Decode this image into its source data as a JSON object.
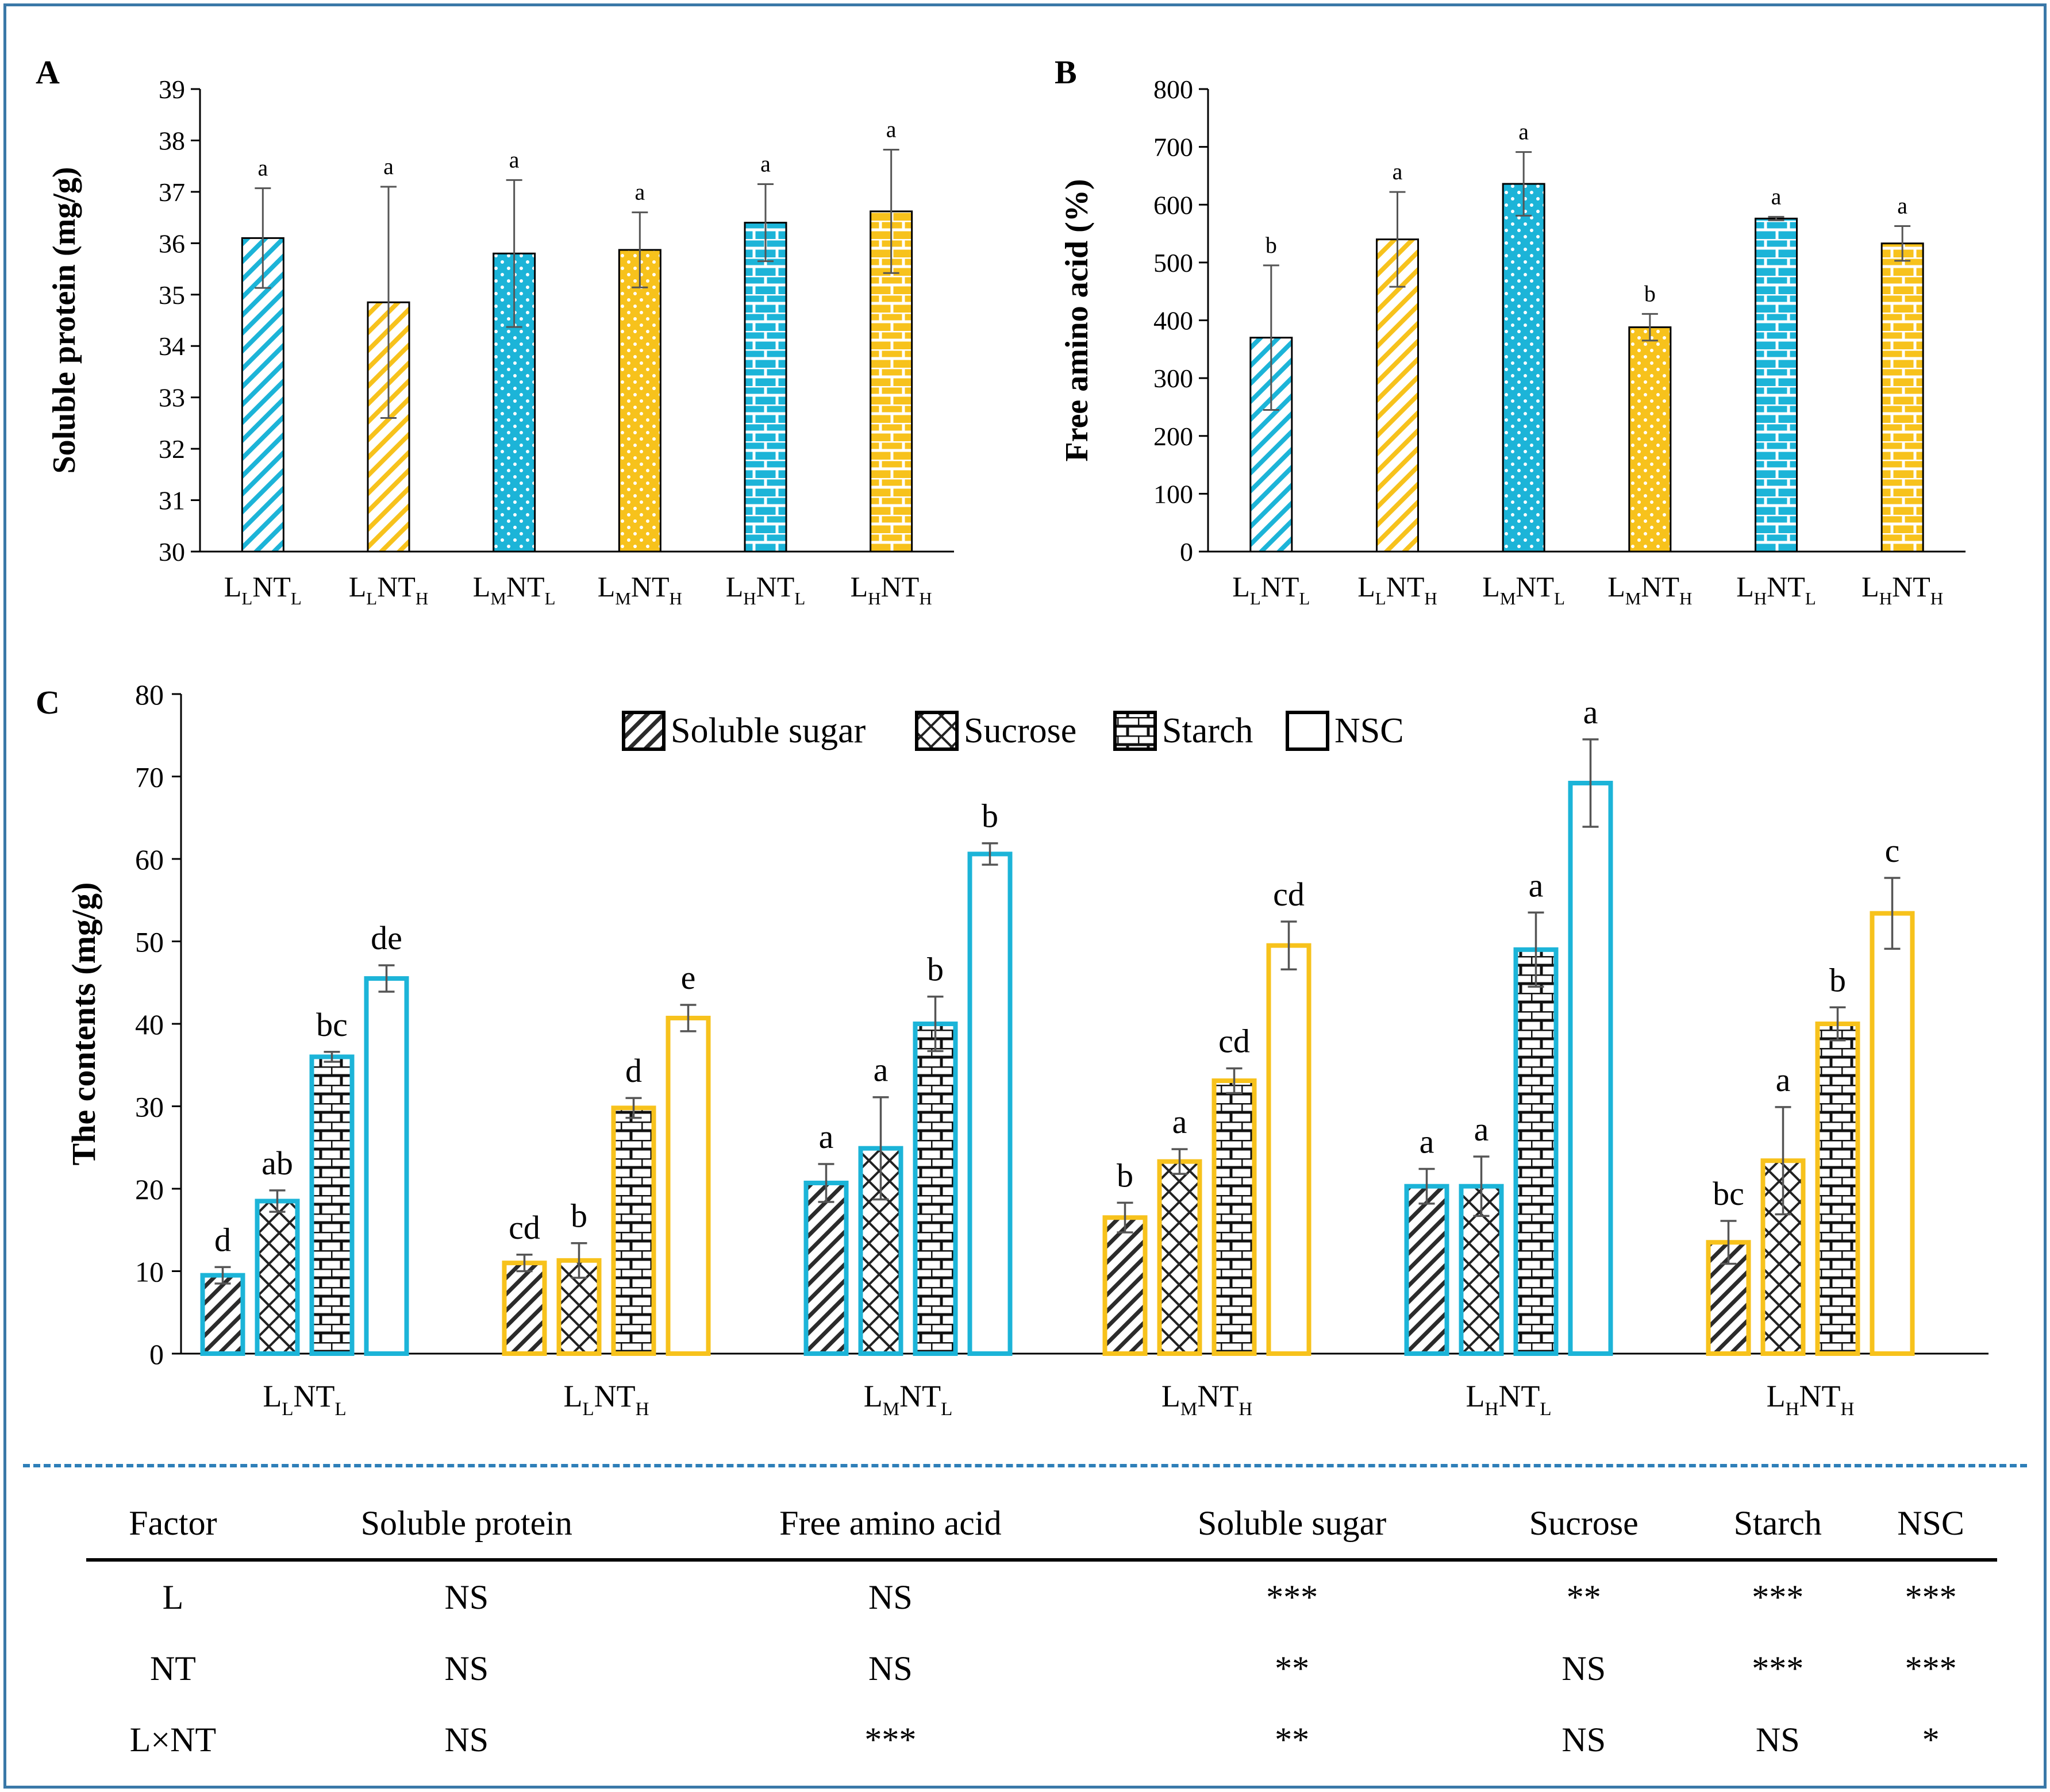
{
  "colors": {
    "blue": "#1cb4d8",
    "yellow": "#f7c21c",
    "frame": "#3a78a8",
    "divider": "#2e7fb8",
    "error_bar": "#555555"
  },
  "chart_data": [
    {
      "panel": "A",
      "type": "bar",
      "ylabel": "Soluble protein (mg/g)",
      "ylim": [
        30,
        39
      ],
      "yticks": [
        "30",
        "31",
        "32",
        "33",
        "34",
        "35",
        "36",
        "37",
        "38",
        "39"
      ],
      "categories": [
        {
          "base": "L",
          "sub1": "L",
          "mid": "NT",
          "sub2": "L"
        },
        {
          "base": "L",
          "sub1": "L",
          "mid": "NT",
          "sub2": "H"
        },
        {
          "base": "L",
          "sub1": "M",
          "mid": "NT",
          "sub2": "L"
        },
        {
          "base": "L",
          "sub1": "M",
          "mid": "NT",
          "sub2": "H"
        },
        {
          "base": "L",
          "sub1": "H",
          "mid": "NT",
          "sub2": "L"
        },
        {
          "base": "L",
          "sub1": "H",
          "mid": "NT",
          "sub2": "H"
        }
      ],
      "values": [
        36.1,
        34.85,
        35.8,
        35.87,
        36.4,
        36.62
      ],
      "errors": [
        0.97,
        2.25,
        1.43,
        0.73,
        0.75,
        1.2
      ],
      "letters": [
        "a",
        "a",
        "a",
        "a",
        "a",
        "a"
      ],
      "bar_colors": [
        "blue",
        "yellow",
        "blue",
        "yellow",
        "blue",
        "yellow"
      ],
      "patterns": [
        "diag",
        "diag",
        "dots",
        "dots",
        "brick",
        "brick"
      ]
    },
    {
      "panel": "B",
      "type": "bar",
      "ylabel": "Free amino acid (%)",
      "ylim": [
        0,
        800
      ],
      "yticks": [
        "0",
        "100",
        "200",
        "300",
        "400",
        "500",
        "600",
        "700",
        "800"
      ],
      "categories": [
        {
          "base": "L",
          "sub1": "L",
          "mid": "NT",
          "sub2": "L"
        },
        {
          "base": "L",
          "sub1": "L",
          "mid": "NT",
          "sub2": "H"
        },
        {
          "base": "L",
          "sub1": "M",
          "mid": "NT",
          "sub2": "L"
        },
        {
          "base": "L",
          "sub1": "M",
          "mid": "NT",
          "sub2": "H"
        },
        {
          "base": "L",
          "sub1": "H",
          "mid": "NT",
          "sub2": "L"
        },
        {
          "base": "L",
          "sub1": "H",
          "mid": "NT",
          "sub2": "H"
        }
      ],
      "values": [
        370,
        540,
        636,
        388,
        576,
        533
      ],
      "errors": [
        125,
        82,
        55,
        23,
        3,
        30
      ],
      "letters": [
        "b",
        "a",
        "a",
        "b",
        "a",
        "a"
      ],
      "bar_colors": [
        "blue",
        "yellow",
        "blue",
        "yellow",
        "blue",
        "yellow"
      ],
      "patterns": [
        "diag",
        "diag",
        "dots",
        "dots",
        "brick",
        "brick"
      ]
    },
    {
      "panel": "C",
      "type": "bar",
      "ylabel": "The contents (mg/g)",
      "ylim": [
        0,
        80
      ],
      "yticks": [
        "0",
        "10",
        "20",
        "30",
        "40",
        "50",
        "60",
        "70",
        "80"
      ],
      "categories": [
        {
          "base": "L",
          "sub1": "L",
          "mid": "NT",
          "sub2": "L"
        },
        {
          "base": "L",
          "sub1": "L",
          "mid": "NT",
          "sub2": "H"
        },
        {
          "base": "L",
          "sub1": "M",
          "mid": "NT",
          "sub2": "L"
        },
        {
          "base": "L",
          "sub1": "M",
          "mid": "NT",
          "sub2": "H"
        },
        {
          "base": "L",
          "sub1": "H",
          "mid": "NT",
          "sub2": "L"
        },
        {
          "base": "L",
          "sub1": "H",
          "mid": "NT",
          "sub2": "H"
        }
      ],
      "group_colors": [
        "blue",
        "yellow",
        "blue",
        "yellow",
        "blue",
        "yellow"
      ],
      "legend_position": "top-center",
      "series": [
        {
          "name": "Soluble sugar",
          "pattern": "diag",
          "values": [
            9.5,
            11.0,
            20.7,
            16.5,
            20.3,
            13.5
          ],
          "errors": [
            1.0,
            1.0,
            2.3,
            1.8,
            2.1,
            2.6
          ],
          "letters": [
            "d",
            "cd",
            "a",
            "b",
            "a",
            "bc"
          ]
        },
        {
          "name": "Sucrose",
          "pattern": "cross",
          "values": [
            18.5,
            11.3,
            24.9,
            23.3,
            20.3,
            23.4
          ],
          "errors": [
            1.3,
            2.1,
            6.2,
            1.5,
            3.6,
            6.5
          ],
          "letters": [
            "ab",
            "b",
            "a",
            "a",
            "a",
            "a"
          ]
        },
        {
          "name": "Starch",
          "pattern": "brick",
          "values": [
            36.0,
            29.8,
            40.0,
            33.1,
            49.0,
            40.0
          ],
          "errors": [
            0.6,
            1.2,
            3.3,
            1.5,
            4.5,
            2.0
          ],
          "letters": [
            "bc",
            "d",
            "b",
            "cd",
            "a",
            "b"
          ]
        },
        {
          "name": "NSC",
          "pattern": "none",
          "values": [
            45.5,
            40.7,
            60.6,
            49.5,
            69.2,
            53.4
          ],
          "errors": [
            1.6,
            1.6,
            1.3,
            2.9,
            5.3,
            4.3
          ],
          "letters": [
            "de",
            "e",
            "b",
            "cd",
            "a",
            "c"
          ]
        }
      ]
    }
  ],
  "table": {
    "headers": [
      "Factor",
      "Soluble protein",
      "Free amino acid",
      "Soluble sugar",
      "Sucrose",
      "Starch",
      "NSC"
    ],
    "rows": [
      [
        "L",
        "NS",
        "NS",
        "***",
        "**",
        "***",
        "***"
      ],
      [
        "NT",
        "NS",
        "NS",
        "**",
        "NS",
        "***",
        "***"
      ],
      [
        "L×NT",
        "NS",
        "***",
        "**",
        "NS",
        "NS",
        "*"
      ]
    ]
  }
}
